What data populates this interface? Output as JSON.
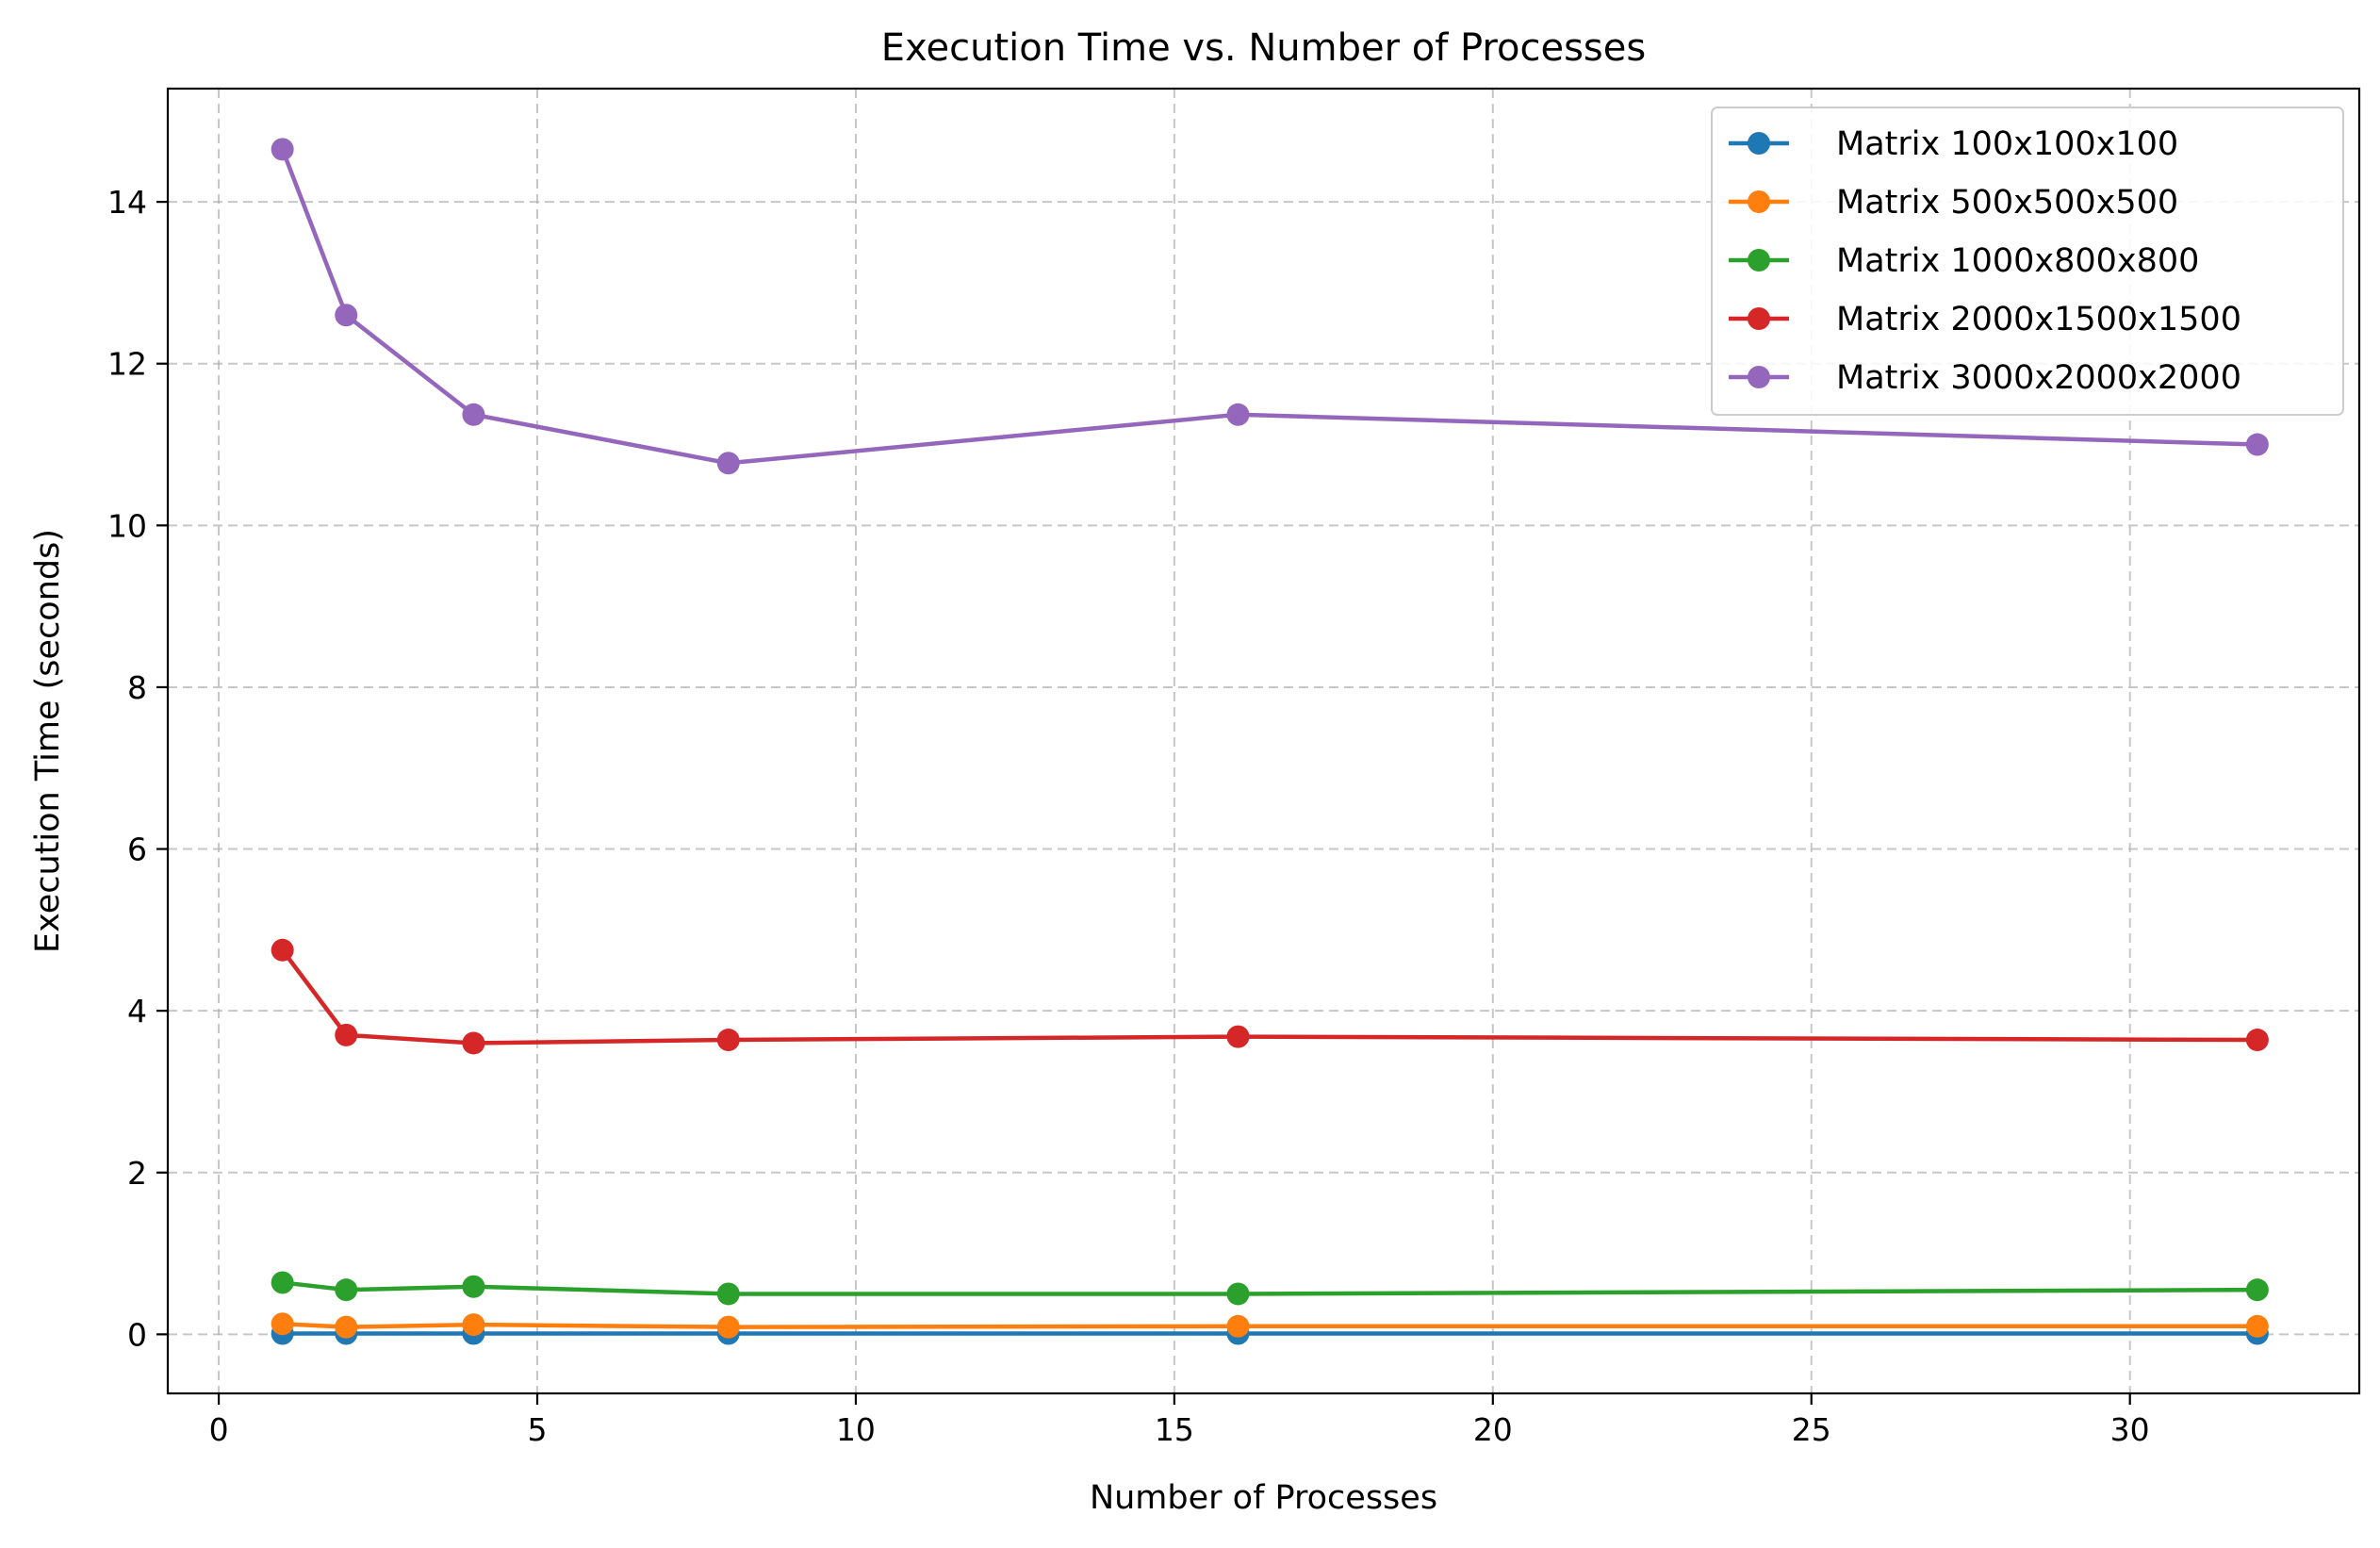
{
  "chart_data": {
    "type": "line",
    "title": "Execution Time vs. Number of Processes",
    "xlabel": "Number of Processes",
    "ylabel": "Execution Time (seconds)",
    "xlim": [
      -0.8,
      33.6
    ],
    "ylim": [
      -0.73,
      15.4
    ],
    "xticks": [
      0,
      5,
      10,
      15,
      20,
      25,
      30
    ],
    "yticks": [
      0,
      2,
      4,
      6,
      8,
      10,
      12,
      14
    ],
    "grid": true,
    "legend_position": "top-right",
    "x": [
      1,
      2,
      4,
      8,
      16,
      32
    ],
    "series": [
      {
        "name": "Matrix 100x100x100",
        "color": "#1f77b4",
        "values": [
          0.01,
          0.01,
          0.01,
          0.01,
          0.01,
          0.01
        ]
      },
      {
        "name": "Matrix 500x500x500",
        "color": "#ff7f0e",
        "values": [
          0.13,
          0.09,
          0.12,
          0.09,
          0.1,
          0.1
        ]
      },
      {
        "name": "Matrix 1000x800x800",
        "color": "#2ca02c",
        "values": [
          0.64,
          0.55,
          0.59,
          0.5,
          0.5,
          0.55
        ]
      },
      {
        "name": "Matrix 2000x1500x1500",
        "color": "#d62728",
        "values": [
          4.75,
          3.7,
          3.6,
          3.64,
          3.68,
          3.64
        ]
      },
      {
        "name": "Matrix 3000x2000x2000",
        "color": "#9467bd",
        "values": [
          14.65,
          12.6,
          11.37,
          10.77,
          11.37,
          11.0
        ]
      }
    ]
  }
}
